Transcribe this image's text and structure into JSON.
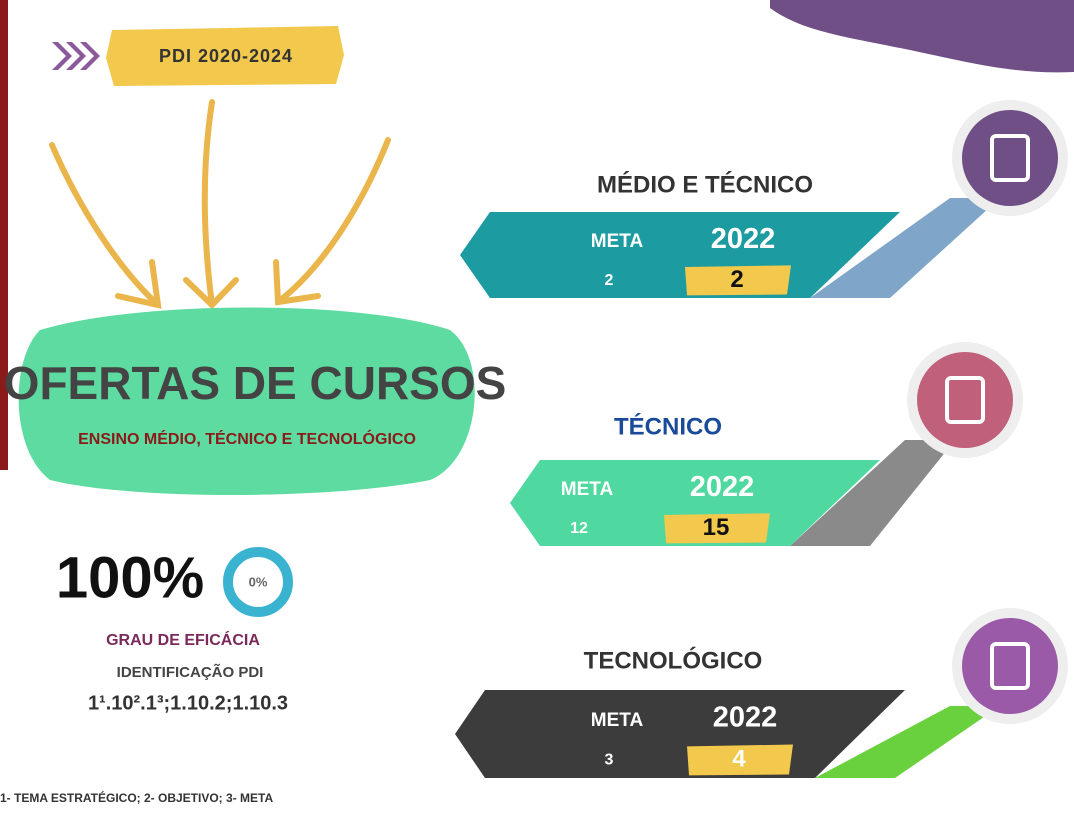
{
  "header": {
    "label": "PDI 2020-2024"
  },
  "main": {
    "title": "OFERTAS DE CURSOS",
    "subtitle": "ENSINO MÉDIO, TÉCNICO E TECNOLÓGICO"
  },
  "stats": {
    "percent": "100%",
    "ring_label": "0%",
    "caption": "GRAU DE EFICÁCIA",
    "id_label": "IDENTIFICAÇÃO PDI",
    "id_value": "1¹.10².1³;1.10.2;1.10.3"
  },
  "panels": [
    {
      "title": "MÉDIO E TÉCNICO",
      "meta_label": "META",
      "meta_number": "2",
      "year": "2022",
      "value": "2"
    },
    {
      "title": "TÉCNICO",
      "meta_label": "META",
      "meta_number": "12",
      "year": "2022",
      "value": "15"
    },
    {
      "title": "TECNOLÓGICO",
      "meta_label": "META",
      "meta_number": "3",
      "year": "2022",
      "value": "4"
    }
  ],
  "footnote": "1- TEMA ESTRATÉGICO; 2- OBJETIVO; 3- META"
}
